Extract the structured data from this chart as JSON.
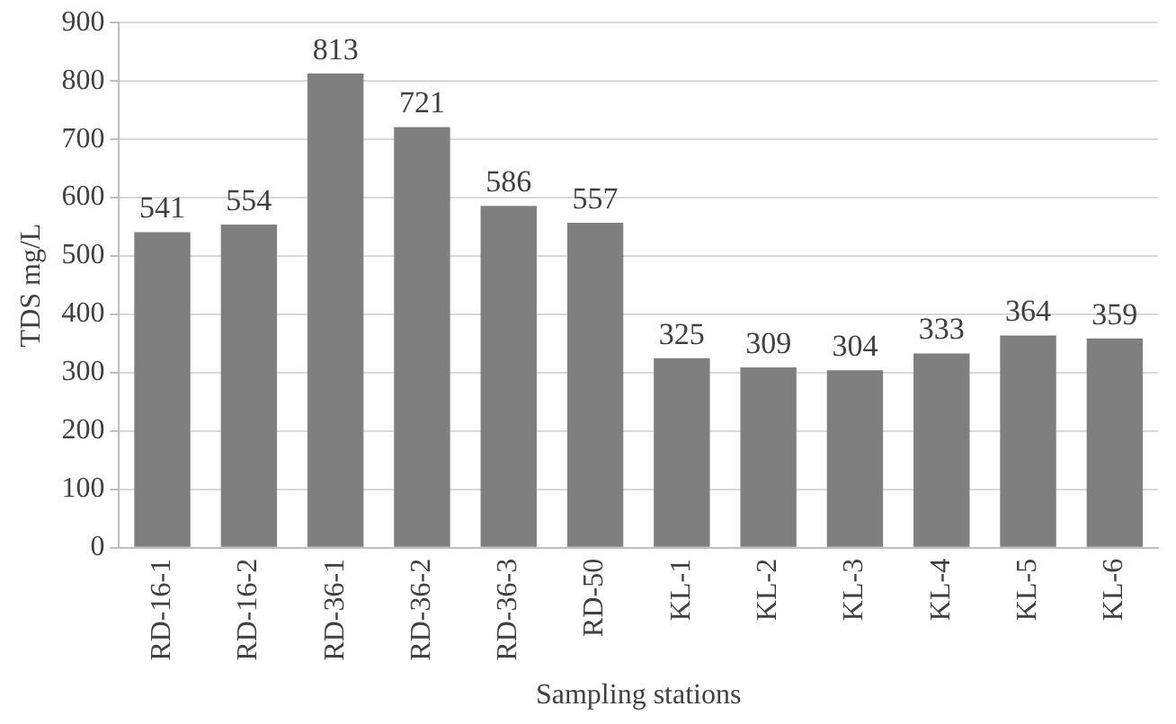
{
  "chart_data": {
    "type": "bar",
    "xlabel": "Sampling stations",
    "ylabel": "TDS mg/L",
    "categories": [
      "RD-16-1",
      "RD-16-2",
      "RD-36-1",
      "RD-36-2",
      "RD-36-3",
      "RD-50",
      "KL-1",
      "KL-2",
      "KL-3",
      "KL-4",
      "KL-5",
      "KL-6"
    ],
    "values": [
      541,
      554,
      813,
      721,
      586,
      557,
      325,
      309,
      304,
      333,
      364,
      359
    ],
    "color": "#7f7f7f",
    "ylim": [
      0,
      900
    ],
    "yticks": [
      0,
      100,
      200,
      300,
      400,
      500,
      600,
      700,
      800,
      900
    ],
    "grid": "y",
    "data_labels": true,
    "legend": false
  }
}
